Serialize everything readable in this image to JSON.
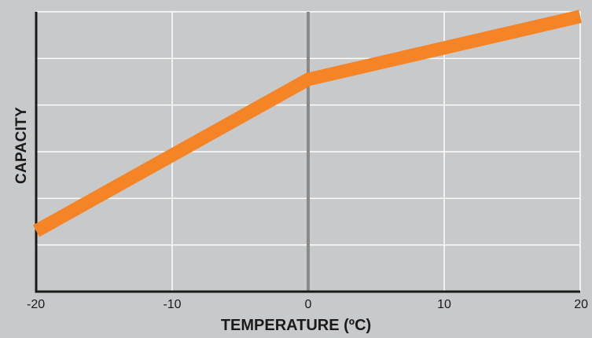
{
  "chart_data": {
    "type": "line",
    "title": "",
    "xlabel": "TEMPERATURE (ºC)",
    "ylabel": "CAPACITY",
    "x_ticks": [
      "-20",
      "-10",
      "0",
      "10",
      "20"
    ],
    "xlim": [
      -20,
      20
    ],
    "ylim": [
      0,
      6
    ],
    "y_gridlines": 6,
    "y_tick_labels_shown": false,
    "grid": true,
    "series": [
      {
        "x": [
          -20,
          0,
          20
        ],
        "y": [
          1.3,
          4.55,
          5.9
        ],
        "color": "#f58426"
      }
    ]
  },
  "colors": {
    "background": "#c8c9cb",
    "grid": "#ffffff",
    "axis": "#1a1a1a",
    "line": "#f58426",
    "zero_line": "#8a8a8a"
  }
}
